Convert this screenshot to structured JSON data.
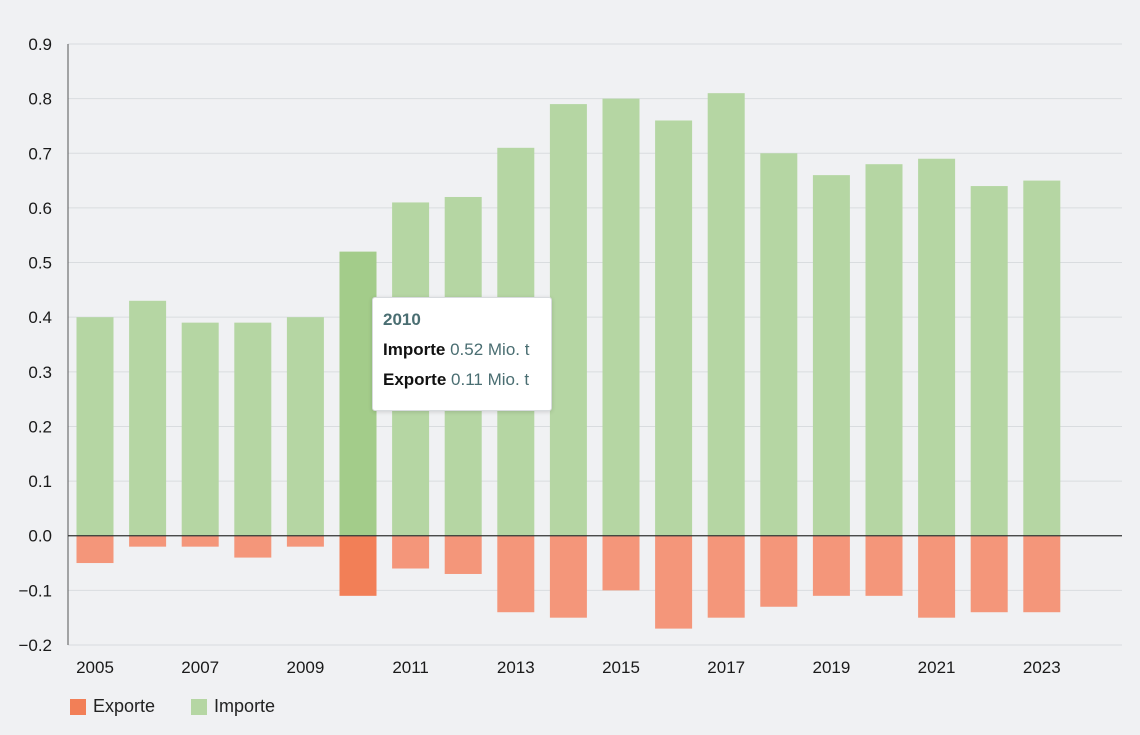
{
  "chart_data": {
    "type": "bar",
    "categories": [
      "2005",
      "2006",
      "2007",
      "2008",
      "2009",
      "2010",
      "2011",
      "2012",
      "2013",
      "2014",
      "2015",
      "2016",
      "2017",
      "2018",
      "2019",
      "2020",
      "2021",
      "2022",
      "2023"
    ],
    "series": [
      {
        "name": "Importe",
        "color": "#b5d6a3",
        "highlight_color": "#a3cc8a",
        "values": [
          0.4,
          0.43,
          0.39,
          0.39,
          0.4,
          0.52,
          0.61,
          0.62,
          0.71,
          0.79,
          0.8,
          0.76,
          0.81,
          0.7,
          0.66,
          0.68,
          0.69,
          0.64,
          0.65
        ]
      },
      {
        "name": "Exporte",
        "color": "#f4967a",
        "highlight_color": "#f27f57",
        "values": [
          -0.05,
          -0.02,
          -0.02,
          -0.04,
          -0.02,
          -0.11,
          -0.06,
          -0.07,
          -0.14,
          -0.15,
          -0.1,
          -0.17,
          -0.15,
          -0.13,
          -0.11,
          -0.11,
          -0.15,
          -0.14,
          -0.14
        ]
      }
    ],
    "x_tick_labels": [
      "2005",
      "2007",
      "2009",
      "2011",
      "2013",
      "2015",
      "2017",
      "2019",
      "2021",
      "2023"
    ],
    "y_ticks": [
      "0.9",
      "0.8",
      "0.7",
      "0.6",
      "0.5",
      "0.4",
      "0.3",
      "0.2",
      "0.1",
      "0.0",
      "−0.1",
      "−0.2"
    ],
    "ylim": [
      -0.2,
      0.9
    ],
    "grid": true,
    "stacked": true,
    "highlighted_category": "2010",
    "legend": [
      {
        "label": "Exporte",
        "color": "#f27f57"
      },
      {
        "label": "Importe",
        "color": "#b5d6a3"
      }
    ],
    "legend_position": "bottom-left"
  },
  "tooltip": {
    "title": "2010",
    "rows": [
      {
        "key": "Importe",
        "value": "0.52 Mio. t"
      },
      {
        "key": "Exporte",
        "value": "0.11 Mio. t"
      }
    ]
  }
}
